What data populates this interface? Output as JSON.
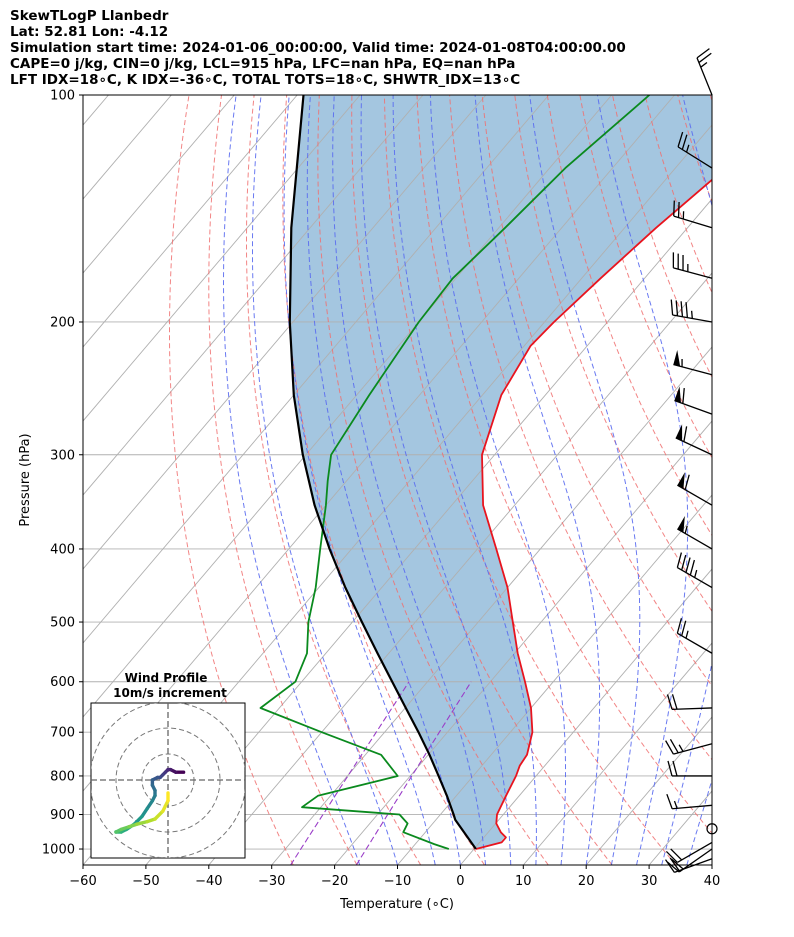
{
  "header": {
    "line1": "SkewTLogP Llanbedr",
    "line2": "Lat: 52.81   Lon: -4.12",
    "line3": "Simulation start time: 2024-01-06_00:00:00, Valid time: 2024-01-08T04:00:00.00",
    "line4": "CAPE=0 j/kg, CIN=0 j/kg, LCL=915 hPa, LFC=nan hPa, EQ=nan hPa",
    "line5": "LFT IDX=18∘C, K IDX=-36∘C, TOTAL TOTS=18∘C, SHWTR_IDX=13∘C"
  },
  "chart_data": {
    "type": "line",
    "xlabel": "Temperature (∘C)",
    "ylabel": "Pressure (hPa)",
    "xlim": [
      -60,
      40
    ],
    "ylim": [
      1050,
      100
    ],
    "y_scale": "log",
    "skew": true,
    "grid": true,
    "x_ticks": [
      -60,
      -50,
      -40,
      -30,
      -20,
      -10,
      0,
      10,
      20,
      30,
      40
    ],
    "x_tick_labels": [
      "−60",
      "−50",
      "−40",
      "−30",
      "−20",
      "−10",
      "0",
      "10",
      "20",
      "30",
      "40"
    ],
    "y_ticks": [
      1000,
      900,
      800,
      700,
      600,
      500,
      400,
      300,
      200,
      100
    ],
    "colors": {
      "temperature": "#e8141e",
      "dewpoint": "#0a8a1e",
      "parcel": "#000000",
      "shade": "#a4c6e0",
      "dry_adiabats": "#f07070",
      "moist_adiabats": "#5a6cf0",
      "isotherms": "#b0b0b0",
      "mixing": "#9a3ec8"
    },
    "series": [
      {
        "key": "temperature",
        "pressure": [
          1000,
          980,
          965,
          950,
          925,
          900,
          850,
          800,
          775,
          750,
          700,
          650,
          600,
          550,
          500,
          450,
          400,
          350,
          300,
          250,
          215,
          200,
          175,
          150,
          125,
          100
        ],
        "values": [
          0.3,
          3.5,
          3.5,
          2.0,
          0.1,
          -1.0,
          -2.1,
          -3.2,
          -4.0,
          -4.3,
          -6.5,
          -10.0,
          -14.5,
          -19.5,
          -24.5,
          -30.0,
          -37.0,
          -45.0,
          -52.0,
          -57.0,
          -59.0,
          -58.5,
          -57.0,
          -55.0,
          -52.0,
          -50.0
        ]
      },
      {
        "key": "dewpoint",
        "pressure": [
          1000,
          985,
          950,
          925,
          900,
          880,
          850,
          800,
          750,
          700,
          650,
          600,
          550,
          500,
          450,
          400,
          350,
          325,
          300,
          250,
          200,
          175,
          150,
          125,
          100
        ],
        "values": [
          -4.0,
          -7.0,
          -13.5,
          -14.0,
          -16.5,
          -33.0,
          -32.0,
          -22.0,
          -27.5,
          -40.0,
          -53.0,
          -51.0,
          -53.0,
          -57.0,
          -60.5,
          -65.0,
          -70.0,
          -73.0,
          -76.0,
          -78.0,
          -80.0,
          -80.5,
          -79.0,
          -77.5,
          -74.0
        ]
      },
      {
        "key": "parcel",
        "pressure": [
          1000,
          915,
          900,
          850,
          800,
          750,
          700,
          650,
          600,
          550,
          500,
          450,
          400,
          350,
          300,
          250,
          200,
          150,
          100
        ],
        "values": [
          0.3,
          -6.9,
          -7.9,
          -11.5,
          -15.5,
          -19.8,
          -24.6,
          -29.9,
          -35.6,
          -41.8,
          -48.5,
          -55.8,
          -63.5,
          -71.8,
          -80.5,
          -90.0,
          -100.5,
          -113.0,
          -129.0
        ]
      }
    ],
    "wind_barbs": [
      {
        "p": 100,
        "dir": 338,
        "kt": 24
      },
      {
        "p": 125,
        "dir": 302,
        "kt": 25
      },
      {
        "p": 150,
        "dir": 287,
        "kt": 25
      },
      {
        "p": 175,
        "dir": 285,
        "kt": 35
      },
      {
        "p": 200,
        "dir": 280,
        "kt": 45
      },
      {
        "p": 235,
        "dir": 285,
        "kt": 55
      },
      {
        "p": 265,
        "dir": 290,
        "kt": 60
      },
      {
        "p": 300,
        "dir": 295,
        "kt": 60
      },
      {
        "p": 350,
        "dir": 300,
        "kt": 60
      },
      {
        "p": 400,
        "dir": 300,
        "kt": 55
      },
      {
        "p": 450,
        "dir": 300,
        "kt": 45
      },
      {
        "p": 550,
        "dir": 300,
        "kt": 25
      },
      {
        "p": 650,
        "dir": 268,
        "kt": 20
      },
      {
        "p": 725,
        "dir": 255,
        "kt": 25
      },
      {
        "p": 800,
        "dir": 270,
        "kt": 20
      },
      {
        "p": 875,
        "dir": 265,
        "kt": 15
      },
      {
        "p": 940,
        "dir": 0,
        "kt": 0
      },
      {
        "p": 980,
        "dir": 240,
        "kt": 20
      },
      {
        "p": 1000,
        "dir": 235,
        "kt": 20
      },
      {
        "p": 1030,
        "dir": 250,
        "kt": 20
      }
    ],
    "inset": {
      "title": "Wind Profile",
      "subtitle": "10m/s increment",
      "hodograph_u": [
        6,
        3,
        1,
        0,
        -1,
        -2,
        -3,
        -4,
        -6,
        -6,
        -5,
        -5,
        -6,
        -8,
        -10,
        -13,
        -16,
        -18,
        -20,
        -20,
        -18,
        -15,
        -12,
        -8,
        -5,
        -2,
        0,
        0
      ],
      "hodograph_v": [
        3,
        3,
        4,
        4,
        3,
        2,
        1,
        1,
        0,
        -2,
        -4,
        -6,
        -8,
        -11,
        -14,
        -17,
        -19,
        -20,
        -20,
        -20,
        -19,
        -18,
        -17,
        -16,
        -15,
        -12,
        -8,
        -5
      ]
    }
  }
}
